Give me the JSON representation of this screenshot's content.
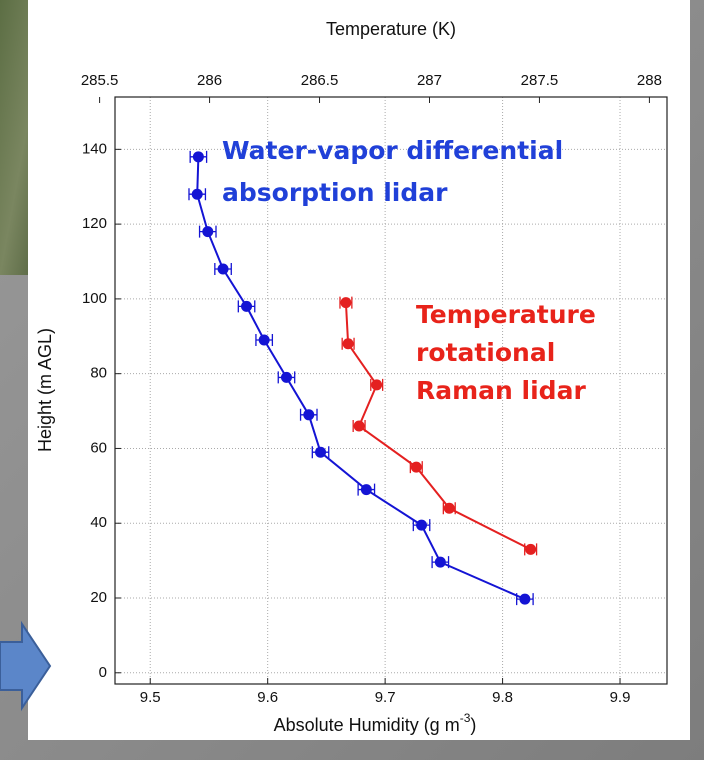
{
  "chart_data": {
    "type": "line",
    "title": "Temperature (K)",
    "ylabel": "Height (m AGL)",
    "xlabel": {
      "text": "Absolute Humidity (g m",
      "superscript": "-3",
      "suffix": ")"
    },
    "xlim": [
      9.47,
      9.94
    ],
    "xticks": [
      9.5,
      9.6,
      9.7,
      9.8,
      9.9
    ],
    "x2lim": [
      285.57,
      288.08
    ],
    "x2ticks": [
      285.5,
      286.0,
      286.5,
      287.0,
      287.5,
      288.0
    ],
    "ylim": [
      -3,
      154
    ],
    "yticks": [
      0,
      20,
      40,
      60,
      80,
      100,
      120,
      140
    ],
    "grid": true,
    "series": [
      {
        "color": "#1414d4",
        "axis": "x",
        "x": [
          9.541,
          9.54,
          9.549,
          9.562,
          9.582,
          9.597,
          9.616,
          9.635,
          9.645,
          9.684,
          9.731,
          9.747,
          9.819
        ],
        "y": [
          138,
          128,
          118,
          108,
          98,
          89,
          79,
          69,
          59,
          49,
          39.5,
          29.6,
          19.7
        ],
        "xerr": [
          0.007,
          0.007,
          0.007,
          0.007,
          0.007,
          0.007,
          0.007,
          0.007,
          0.007,
          0.007,
          0.007,
          0.007,
          0.007
        ]
      },
      {
        "color": "#e42020",
        "axis": "x2",
        "x": [
          286.62,
          286.63,
          286.76,
          286.68,
          286.94,
          287.09,
          287.46
        ],
        "y": [
          99,
          88,
          77,
          66,
          55,
          44,
          33
        ],
        "xerr": [
          0.027,
          0.027,
          0.027,
          0.027,
          0.027,
          0.027,
          0.027
        ]
      }
    ],
    "annotations": [
      {
        "color": "#2040d8",
        "lines": [
          "Water-vapor differential",
          "absorption lidar"
        ]
      },
      {
        "color": "#e8231a",
        "lines": [
          "Temperature",
          "rotational",
          "Raman lidar"
        ]
      }
    ]
  }
}
